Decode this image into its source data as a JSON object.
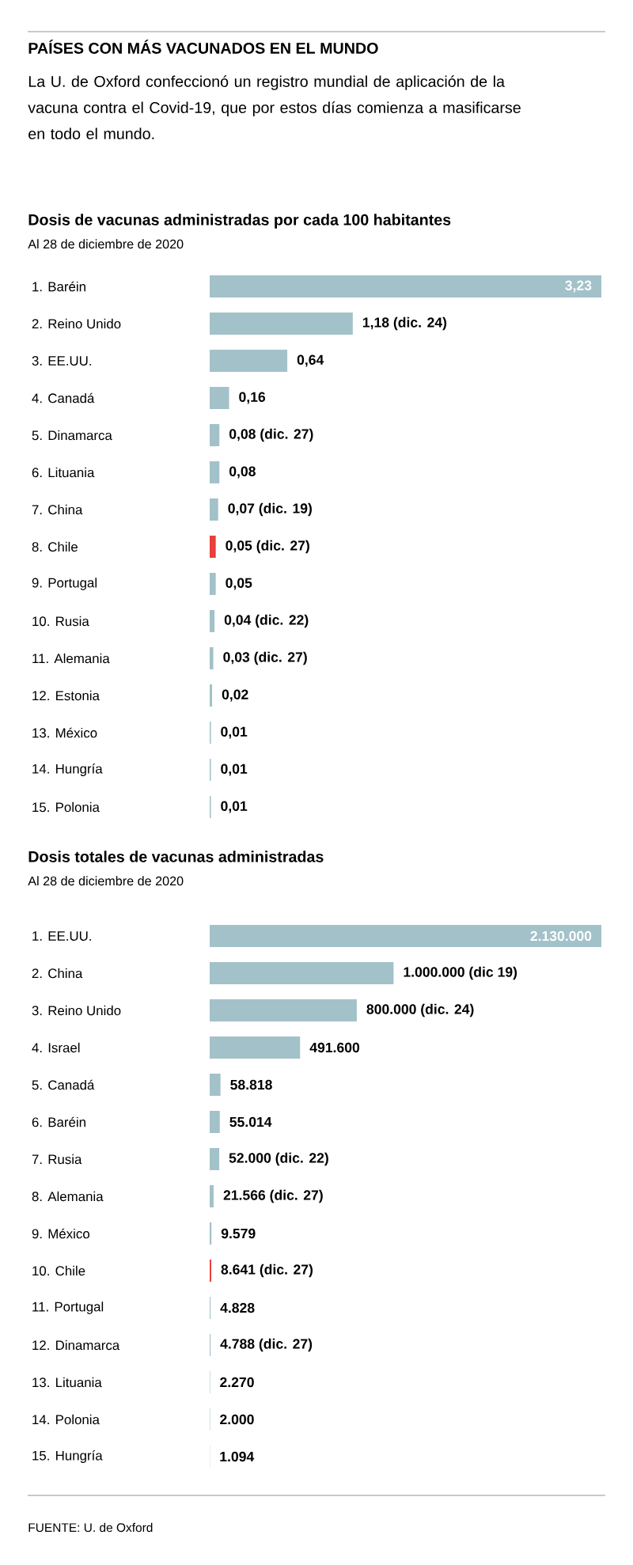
{
  "chart_data": [
    {
      "type": "bar",
      "orientation": "horizontal",
      "title": "Dosis de vacunas administradas por cada 100 habitantes",
      "subtitle": "Al 28 de diciembre de 2020",
      "annotations": [
        "PAÍSES CON MÁS VACUNADOS EN EL MUNDO",
        "La U. de Oxford confeccionó un registro mundial de aplicación de la vacuna contra el Covid-19, que por estos días comienza a masificarse en todo el mundo."
      ],
      "categories": [
        "1. Baréin",
        "2. Reino Unido",
        "3. EE.UU.",
        "4. Canadá",
        "5. Dinamarca",
        "6. Lituania",
        "7. China",
        "8. Chile",
        "9. Portugal",
        "10. Rusia",
        "11. Alemania",
        "12. Estonia",
        "13. México",
        "14. Hungría",
        "15. Polonia"
      ],
      "values": [
        3.23,
        1.18,
        0.64,
        0.16,
        0.08,
        0.08,
        0.07,
        0.05,
        0.05,
        0.04,
        0.03,
        0.02,
        0.01,
        0.01,
        0.01
      ],
      "value_labels": [
        "3,23",
        "1,18 (dic. 24)",
        "0,64",
        "0,16",
        "0,08 (dic. 27)",
        "0,08",
        "0,07 (dic. 19)",
        "0,05 (dic. 27)",
        "0,05",
        "0,04 (dic. 22)",
        "0,03 (dic. 27)",
        "0,02",
        "0,01",
        "0,01",
        "0,01"
      ],
      "colors": [
        "#a3c1c9",
        "#a3c1c9",
        "#a3c1c9",
        "#a3c1c9",
        "#a3c1c9",
        "#a3c1c9",
        "#a3c1c9",
        "#e8403a",
        "#a3c1c9",
        "#a3c1c9",
        "#a3c1c9",
        "#a3c1c9",
        "#a3c1c9",
        "#a3c1c9",
        "#a3c1c9"
      ],
      "tick_labels": "y"
    },
    {
      "type": "bar",
      "orientation": "horizontal",
      "title": "Dosis totales de vacunas administradas",
      "subtitle": "Al 28 de diciembre de 2020",
      "annotations": [
        "FUENTE: U. de Oxford"
      ],
      "categories": [
        "1. EE.UU.",
        "2. China",
        "3. Reino Unido",
        "4. Israel",
        "5. Canadá",
        "6. Baréin",
        "7. Rusia",
        "8. Alemania",
        "9. México",
        "10. Chile",
        "11. Portugal",
        "12. Dinamarca",
        "13. Lituania",
        "14. Polonia",
        "15. Hungría"
      ],
      "values": [
        2130000,
        1000000,
        800000,
        491600,
        58818,
        55014,
        52000,
        21566,
        9579,
        8641,
        4828,
        4788,
        2270,
        2000,
        1094
      ],
      "value_labels": [
        "2.130.000",
        "1.000.000 (dic 19)",
        "800.000 (dic. 24)",
        "491.600",
        "58.818",
        "55.014",
        "52.000 (dic. 22)",
        "21.566 (dic. 27)",
        "9.579",
        "8.641 (dic. 27)",
        "4.828",
        "4.788 (dic. 27)",
        "2.270",
        "2.000",
        "1.094"
      ],
      "colors": [
        "#a3c1c9",
        "#a3c1c9",
        "#a3c1c9",
        "#a3c1c9",
        "#a3c1c9",
        "#a3c1c9",
        "#a3c1c9",
        "#a3c1c9",
        "#a3c1c9",
        "#e8403a",
        "#a3c1c9",
        "#a3c1c9",
        "#a3c1c9",
        "#a3c1c9",
        "#a3c1c9"
      ],
      "tick_labels": "y"
    }
  ]
}
